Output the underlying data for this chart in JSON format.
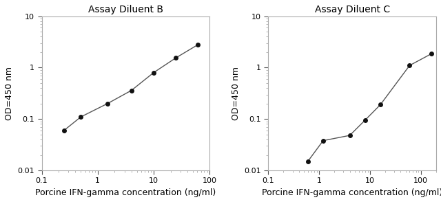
{
  "plot1": {
    "title": "Assay Diluent B",
    "x": [
      0.25,
      0.5,
      1.5,
      4,
      10,
      25,
      62
    ],
    "y": [
      0.06,
      0.11,
      0.2,
      0.36,
      0.8,
      1.55,
      2.8
    ],
    "xlim": [
      0.15,
      100
    ],
    "ylim": [
      0.01,
      10
    ],
    "xlabel": "Porcine IFN-gamma concentration (ng/ml)",
    "ylabel": "OD=450 nm",
    "xticks": [
      0.1,
      1,
      10,
      100
    ],
    "xtick_labels": [
      "0.1",
      "1",
      "10",
      "100"
    ],
    "yticks": [
      0.01,
      0.1,
      1,
      10
    ],
    "ytick_labels": [
      "0.01",
      "0.1",
      "1",
      "10"
    ]
  },
  "plot2": {
    "title": "Assay Diluent C",
    "x": [
      0.6,
      1.2,
      4,
      8,
      16,
      60,
      160
    ],
    "y": [
      0.015,
      0.038,
      0.048,
      0.095,
      0.19,
      1.1,
      1.85
    ],
    "xlim": [
      0.15,
      200
    ],
    "ylim": [
      0.01,
      10
    ],
    "xlabel": "Porcine IFN-gamma concentration (ng/ml)",
    "ylabel": "OD=450 nm",
    "xticks": [
      0.1,
      1,
      10,
      100
    ],
    "xtick_labels": [
      "0.1",
      "1",
      "10",
      "100"
    ],
    "yticks": [
      0.01,
      0.1,
      1,
      10
    ],
    "ytick_labels": [
      "0.01",
      "0.1",
      "1",
      "10"
    ]
  },
  "line_color": "#555555",
  "marker_color": "#111111",
  "marker_size": 4,
  "line_width": 1.0,
  "title_fontsize": 10,
  "label_fontsize": 9,
  "tick_fontsize": 8,
  "bg_color": "#ffffff"
}
